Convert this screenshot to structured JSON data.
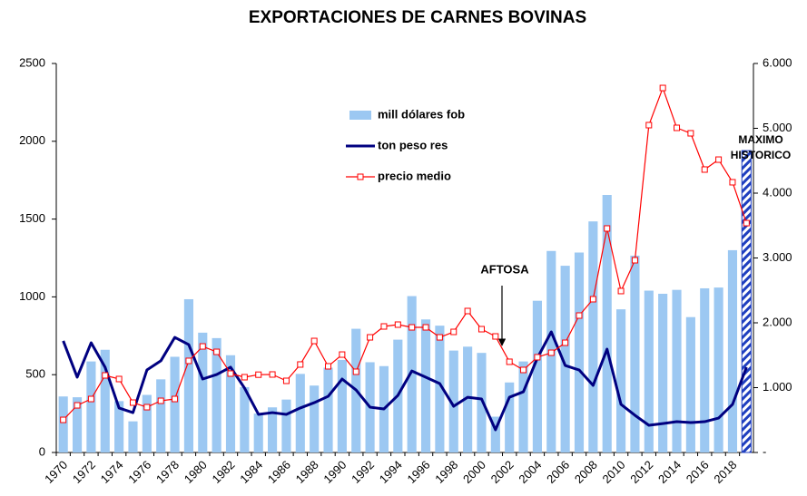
{
  "chart_data": {
    "type": "bar-line",
    "title": "EXPORTACIONES DE CARNES BOVINAS",
    "categories": [
      "1970",
      null,
      "1972",
      null,
      "1974",
      null,
      "1976",
      null,
      "1978",
      null,
      "1980",
      null,
      "1982",
      null,
      "1984",
      null,
      "1986",
      null,
      "1988",
      null,
      "1990",
      null,
      "1992",
      null,
      "1994",
      null,
      "1996",
      null,
      "1998",
      null,
      "2000",
      null,
      "2002",
      null,
      "2004",
      null,
      "2006",
      null,
      "2008",
      null,
      "2010",
      null,
      "2012",
      null,
      "2014",
      null,
      "2016",
      null,
      "2018",
      null
    ],
    "series": [
      {
        "name": "mill dólares fob",
        "kind": "bar",
        "color": "#9cc8f2",
        "highlight": {
          "index": 49,
          "color": "#1f3fbf",
          "pattern": "hatch"
        },
        "values": [
          360,
          355,
          585,
          660,
          330,
          200,
          370,
          470,
          615,
          985,
          770,
          735,
          625,
          420,
          250,
          290,
          340,
          505,
          430,
          545,
          595,
          795,
          580,
          555,
          725,
          1005,
          855,
          815,
          655,
          680,
          640,
          230,
          450,
          585,
          975,
          1295,
          1200,
          1285,
          1485,
          1655,
          920,
          1265,
          1040,
          1020,
          1045,
          870,
          1055,
          1060,
          1300,
          1940
        ]
      },
      {
        "name": "ton peso res",
        "kind": "line",
        "color": "#000080",
        "values": [
          717,
          484,
          705,
          548,
          286,
          256,
          530,
          589,
          740,
          693,
          472,
          501,
          548,
          414,
          245,
          256,
          245,
          286,
          320,
          361,
          472,
          402,
          291,
          280,
          367,
          524,
          484,
          443,
          297,
          355,
          344,
          146,
          355,
          390,
          606,
          775,
          559,
          530,
          431,
          664,
          309,
          239,
          175,
          186,
          198,
          192,
          198,
          221,
          309,
          548
        ]
      },
      {
        "name": "precio medio",
        "kind": "line-marker",
        "axis": "y2",
        "color": "#ff0000",
        "values": [
          503,
          727,
          825,
          1189,
          1133,
          769,
          699,
          797,
          825,
          1413,
          1636,
          1552,
          1217,
          1161,
          1200,
          1203,
          1105,
          1357,
          1720,
          1329,
          1510,
          1245,
          1776,
          1944,
          1972,
          1930,
          1930,
          1776,
          1860,
          2182,
          1902,
          1790,
          1399,
          1273,
          1469,
          1538,
          1692,
          2112,
          2364,
          3455,
          2490,
          2965,
          5049,
          5622,
          5007,
          4923,
          4364,
          4517,
          4168,
          3538
        ]
      }
    ],
    "ylim": [
      0,
      2500
    ],
    "yticks": [
      0,
      500,
      1000,
      1500,
      2000,
      2500
    ],
    "y2lim": [
      0,
      6000
    ],
    "y2ticks": [
      {
        "value": 0,
        "label": "-"
      },
      {
        "value": 1000,
        "label": "1.000"
      },
      {
        "value": 2000,
        "label": "2.000"
      },
      {
        "value": 3000,
        "label": "3.000"
      },
      {
        "value": 4000,
        "label": "4.000"
      },
      {
        "value": 5000,
        "label": "5.000"
      },
      {
        "value": 6000,
        "label": "6.000"
      }
    ],
    "annotations": [
      {
        "text": "AFTOSA"
      },
      {
        "lines": [
          "MAXIMO",
          "HISTORICO"
        ]
      }
    ]
  }
}
